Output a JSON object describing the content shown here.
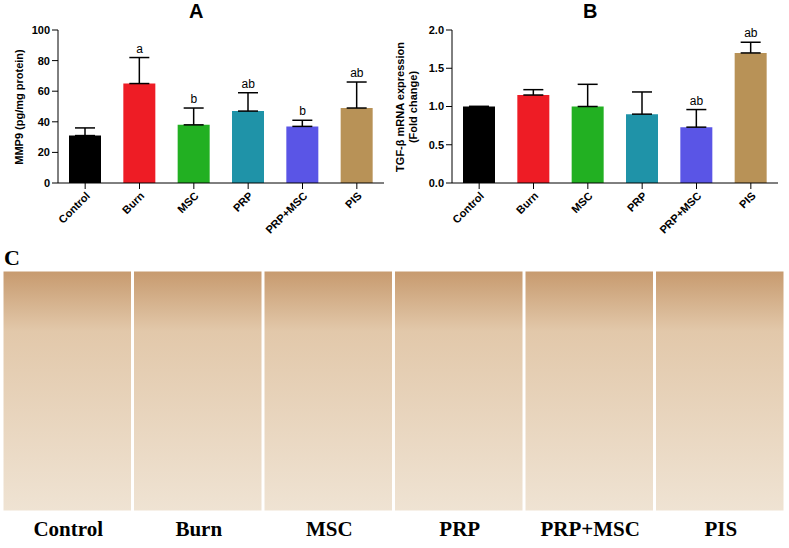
{
  "chart_data": [
    {
      "panel": "A",
      "type": "bar",
      "y_label": [
        "MMP9 (pg/mg protein)"
      ],
      "categories": [
        "Control",
        "Burn",
        "MSC",
        "PRP",
        "PRP+MSC",
        "PIS"
      ],
      "values": [
        31,
        65,
        38,
        47,
        37,
        49
      ],
      "errors": [
        5,
        17,
        11,
        12,
        4,
        17
      ],
      "annotations": [
        null,
        "a",
        "b",
        "ab",
        "b",
        "ab"
      ],
      "colors": [
        "#000000",
        "#ee1c25",
        "#22b022",
        "#1f93a8",
        "#5a55e6",
        "#b89257"
      ],
      "ylim": [
        0,
        100
      ],
      "yticks": [
        0,
        20,
        40,
        60,
        80,
        100
      ],
      "grid": false
    },
    {
      "panel": "B",
      "type": "bar",
      "y_label": [
        "TGF-β mRNA expression",
        "(Fold change)"
      ],
      "categories": [
        "Control",
        "Burn",
        "MSC",
        "PRP",
        "PRP+MSC",
        "PIS"
      ],
      "values": [
        1.0,
        1.15,
        1.0,
        0.9,
        0.73,
        1.7
      ],
      "errors": [
        0,
        0.07,
        0.29,
        0.29,
        0.23,
        0.14
      ],
      "annotations": [
        null,
        null,
        null,
        null,
        "ab",
        "ab"
      ],
      "colors": [
        "#000000",
        "#ee1c25",
        "#22b022",
        "#1f93a8",
        "#5a55e6",
        "#b89257"
      ],
      "ylim": [
        0,
        2.0
      ],
      "yticks": [
        {
          "value": 0,
          "label": "0.0"
        },
        {
          "value": 0.5,
          "label": "0.5"
        },
        {
          "value": 1.0,
          "label": "1.0"
        },
        {
          "value": 1.5,
          "label": "1.5"
        },
        {
          "value": 2.0,
          "label": "2.0"
        }
      ],
      "grid": false
    }
  ],
  "image_panel": {
    "label": "C",
    "captions": [
      "Control",
      "Burn",
      "MSC",
      "PRP",
      "PRP+MSC",
      "PIS"
    ]
  }
}
